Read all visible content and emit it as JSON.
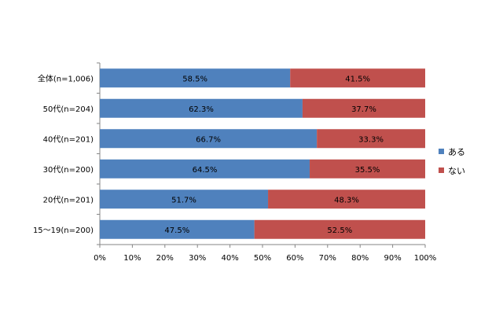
{
  "chart_data": {
    "type": "bar",
    "orientation": "horizontal",
    "stacked": "percent",
    "categories": [
      "全体(n=1,006)",
      "50代(n=204)",
      "40代(n=201)",
      "30代(n=200)",
      "20代(n=201)",
      "15～19(n=200)"
    ],
    "series": [
      {
        "name": "ある",
        "color": "#4f81bd",
        "values": [
          58.5,
          62.3,
          66.7,
          64.5,
          51.7,
          47.5
        ],
        "labels": [
          "58.5%",
          "62.3%",
          "66.7%",
          "64.5%",
          "51.7%",
          "47.5%"
        ]
      },
      {
        "name": "ない",
        "color": "#c0504d",
        "values": [
          41.5,
          37.7,
          33.3,
          35.5,
          48.3,
          52.5
        ],
        "labels": [
          "41.5%",
          "37.7%",
          "33.3%",
          "35.5%",
          "48.3%",
          "52.5%"
        ]
      }
    ],
    "xlim": [
      0,
      100
    ],
    "xticks": [
      "0%",
      "10%",
      "20%",
      "30%",
      "40%",
      "50%",
      "60%",
      "70%",
      "80%",
      "90%",
      "100%"
    ],
    "grid": false,
    "legend": "right",
    "title": "",
    "xlabel": "",
    "ylabel": ""
  }
}
